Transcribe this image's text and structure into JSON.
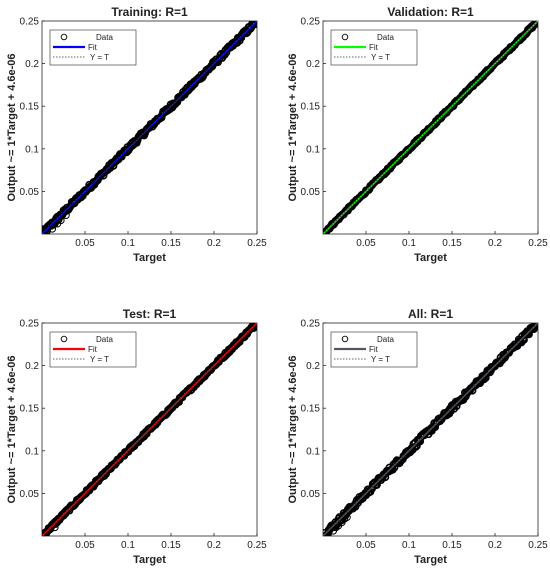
{
  "chart_data": [
    {
      "type": "scatter",
      "title": "Training: R=1",
      "xlabel": "Target",
      "ylabel": "Output ~= 1*Target + 4.6e-06",
      "xlim": [
        0,
        0.25
      ],
      "ylim": [
        0,
        0.25
      ],
      "xticks": [
        "0.05",
        "0.1",
        "0.15",
        "0.2",
        "0.25"
      ],
      "yticks": [
        "0.05",
        "0.1",
        "0.15",
        "0.2",
        "0.25"
      ],
      "fit_color": "#0000ff",
      "legend": {
        "position": "top-left",
        "entries": [
          "Data",
          "Fit",
          "Y = T"
        ]
      },
      "fit": {
        "slope": 1,
        "intercept": 4.6e-06
      },
      "data": {
        "x_range": [
          0,
          0.25
        ],
        "spread": 0.003,
        "outliers": [
          [
            0.012,
            0.006
          ],
          [
            0.018,
            0.012
          ],
          [
            0.022,
            0.016
          ],
          [
            0.028,
            0.022
          ],
          [
            0.015,
            0.012
          ]
        ]
      },
      "grid": false
    },
    {
      "type": "scatter",
      "title": "Validation: R=1",
      "xlabel": "Target",
      "ylabel": "Output ~= 1*Target + 4.6e-06",
      "xlim": [
        0,
        0.25
      ],
      "ylim": [
        0,
        0.25
      ],
      "xticks": [
        "0.05",
        "0.1",
        "0.15",
        "0.2",
        "0.25"
      ],
      "yticks": [
        "0.05",
        "0.1",
        "0.15",
        "0.2",
        "0.25"
      ],
      "fit_color": "#00ff00",
      "legend": {
        "position": "top-left",
        "entries": [
          "Data",
          "Fit",
          "Y = T"
        ]
      },
      "fit": {
        "slope": 1,
        "intercept": 4.6e-06
      },
      "data": {
        "x_range": [
          0,
          0.25
        ],
        "spread": 0.0015,
        "outliers": []
      },
      "grid": false
    },
    {
      "type": "scatter",
      "title": "Test: R=1",
      "xlabel": "Target",
      "ylabel": "Output ~= 1*Target + 4.6e-06",
      "xlim": [
        0,
        0.25
      ],
      "ylim": [
        0,
        0.25
      ],
      "xticks": [
        "0.05",
        "0.1",
        "0.15",
        "0.2",
        "0.25"
      ],
      "yticks": [
        "0.05",
        "0.1",
        "0.15",
        "0.2",
        "0.25"
      ],
      "fit_color": "#ff0000",
      "legend": {
        "position": "top-left",
        "entries": [
          "Data",
          "Fit",
          "Y = T"
        ]
      },
      "fit": {
        "slope": 1,
        "intercept": 4.6e-06
      },
      "data": {
        "x_range": [
          0,
          0.25
        ],
        "spread": 0.002,
        "outliers": [
          [
            0.015,
            0.01
          ]
        ]
      },
      "grid": false
    },
    {
      "type": "scatter",
      "title": "All: R=1",
      "xlabel": "Target",
      "ylabel": "Output ~= 1*Target + 4.6e-06",
      "xlim": [
        0,
        0.25
      ],
      "ylim": [
        0,
        0.25
      ],
      "xticks": [
        "0.05",
        "0.1",
        "0.15",
        "0.2",
        "0.25"
      ],
      "yticks": [
        "0.05",
        "0.1",
        "0.15",
        "0.2",
        "0.25"
      ],
      "fit_color": "#555566",
      "legend": {
        "position": "top-left",
        "entries": [
          "Data",
          "Fit",
          "Y = T"
        ]
      },
      "fit": {
        "slope": 1,
        "intercept": 4.6e-06
      },
      "data": {
        "x_range": [
          0,
          0.25
        ],
        "spread": 0.0035,
        "outliers": [
          [
            0.012,
            0.006
          ],
          [
            0.018,
            0.012
          ],
          [
            0.022,
            0.016
          ],
          [
            0.028,
            0.022
          ],
          [
            0.015,
            0.01
          ],
          [
            0.025,
            0.02
          ]
        ]
      },
      "grid": false
    }
  ]
}
